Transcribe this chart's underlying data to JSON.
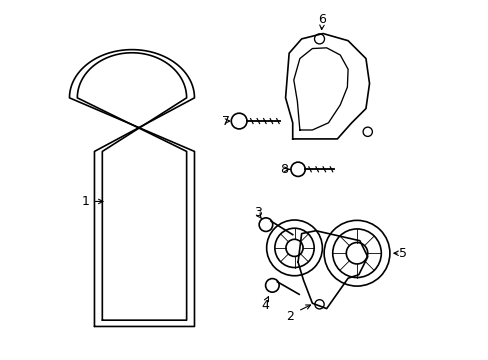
{
  "background_color": "#ffffff",
  "line_color": "#000000",
  "line_width": 1.2,
  "fig_width": 4.89,
  "fig_height": 3.6,
  "dpi": 100
}
